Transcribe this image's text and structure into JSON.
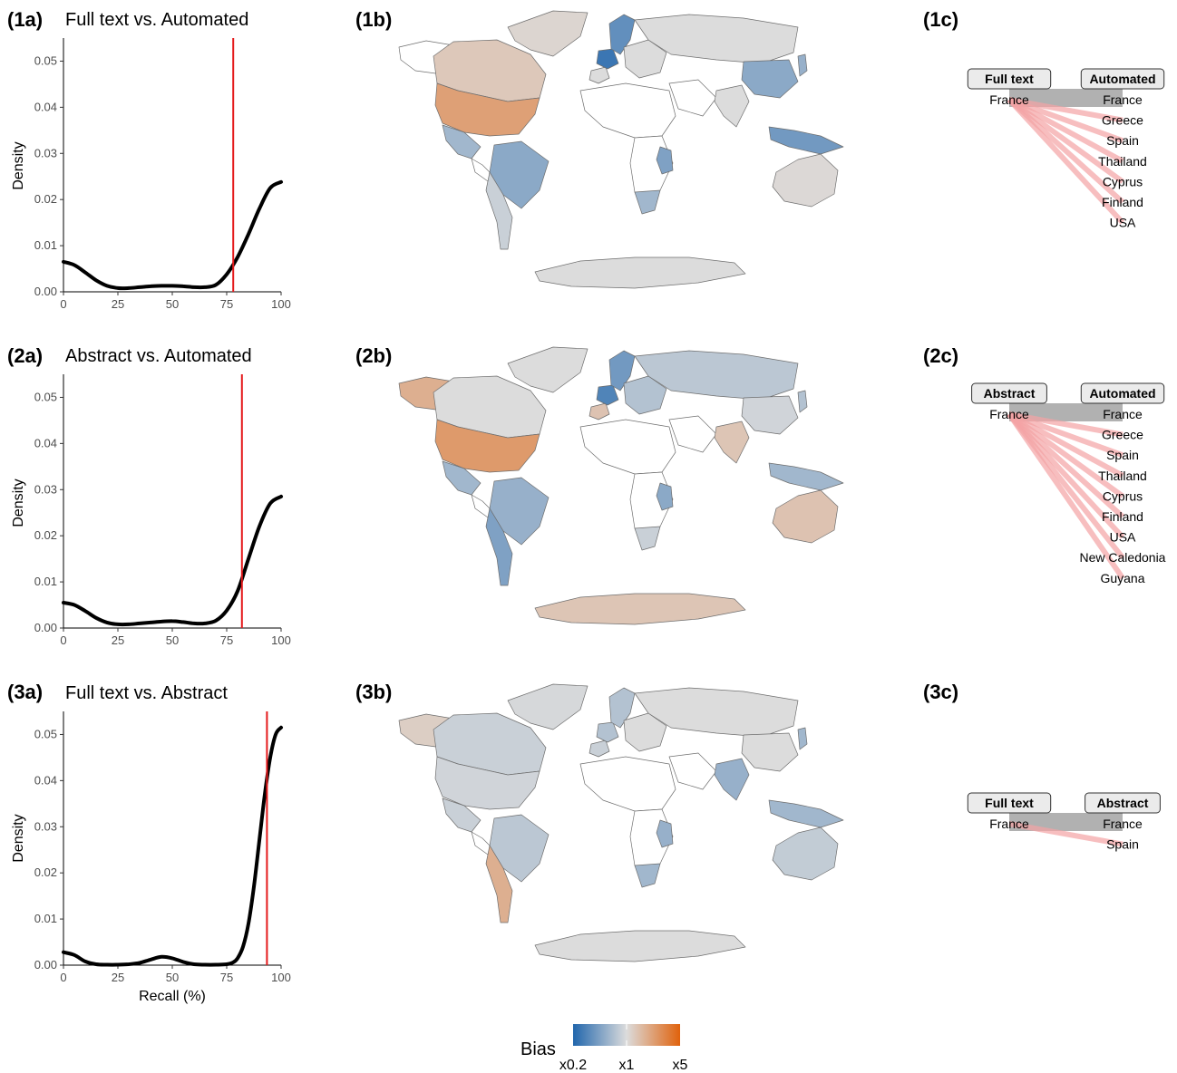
{
  "colors": {
    "density_line": "#000000",
    "recall_marker": "#e41a1c",
    "bias_low": "#2166ac",
    "bias_mid": "#dcdcdc",
    "bias_high": "#e0620c",
    "link": "#f4a3a5",
    "self_link": "#a9a9a9",
    "land_default": "#ffffff",
    "border": "#6e6e6e"
  },
  "chart_data": [
    {
      "id": "1a",
      "type": "line",
      "panel_label": "(1a)",
      "title": "Full text vs. Automated",
      "xlabel": "",
      "ylabel": "Density",
      "xlim": [
        0,
        100
      ],
      "ylim": [
        0,
        0.055
      ],
      "x_ticks": [
        "0",
        "25",
        "50",
        "75",
        "100"
      ],
      "y_ticks": [
        "0.00",
        "0.01",
        "0.02",
        "0.03",
        "0.04",
        "0.05"
      ],
      "x": [
        0,
        5,
        10,
        15,
        20,
        25,
        30,
        35,
        40,
        45,
        50,
        55,
        60,
        65,
        70,
        75,
        80,
        85,
        90,
        95,
        100
      ],
      "y": [
        0.0065,
        0.0058,
        0.0042,
        0.0025,
        0.0013,
        0.0008,
        0.0008,
        0.001,
        0.0012,
        0.0013,
        0.0013,
        0.0012,
        0.001,
        0.001,
        0.0015,
        0.0038,
        0.0075,
        0.0125,
        0.018,
        0.0225,
        0.0238
      ],
      "grid": false,
      "reference_x": 78
    },
    {
      "id": "2a",
      "type": "line",
      "panel_label": "(2a)",
      "title": "Abstract vs. Automated",
      "xlabel": "",
      "ylabel": "Density",
      "xlim": [
        0,
        100
      ],
      "ylim": [
        0,
        0.055
      ],
      "x_ticks": [
        "0",
        "25",
        "50",
        "75",
        "100"
      ],
      "y_ticks": [
        "0.00",
        "0.01",
        "0.02",
        "0.03",
        "0.04",
        "0.05"
      ],
      "x": [
        0,
        5,
        10,
        15,
        20,
        25,
        30,
        35,
        40,
        45,
        50,
        55,
        60,
        65,
        70,
        75,
        80,
        85,
        90,
        95,
        100
      ],
      "y": [
        0.0055,
        0.005,
        0.0037,
        0.0022,
        0.0012,
        0.0008,
        0.0008,
        0.001,
        0.0012,
        0.0014,
        0.0015,
        0.0013,
        0.001,
        0.001,
        0.0016,
        0.0038,
        0.008,
        0.015,
        0.022,
        0.027,
        0.0285
      ],
      "grid": false,
      "reference_x": 82
    },
    {
      "id": "3a",
      "type": "line",
      "panel_label": "(3a)",
      "title": "Full text vs. Abstract",
      "xlabel": "Recall (%)",
      "ylabel": "Density",
      "xlim": [
        0,
        100
      ],
      "ylim": [
        0,
        0.055
      ],
      "x_ticks": [
        "0",
        "25",
        "50",
        "75",
        "100"
      ],
      "y_ticks": [
        "0.00",
        "0.01",
        "0.02",
        "0.03",
        "0.04",
        "0.05"
      ],
      "x": [
        0,
        5,
        10,
        15,
        20,
        25,
        30,
        35,
        40,
        45,
        50,
        55,
        60,
        65,
        70,
        75,
        78,
        80,
        82.5,
        85,
        87.5,
        90,
        92.5,
        95,
        97.5,
        100
      ],
      "y": [
        0.0028,
        0.0022,
        0.0008,
        0.0002,
        0.0001,
        0.0001,
        0.0002,
        0.0005,
        0.0012,
        0.0018,
        0.0015,
        0.0007,
        0.0002,
        0.0001,
        0.0001,
        0.0002,
        0.0006,
        0.0015,
        0.004,
        0.009,
        0.017,
        0.027,
        0.037,
        0.045,
        0.05,
        0.0515
      ],
      "grid": false,
      "reference_x": 93.5
    }
  ],
  "maps": [
    {
      "panel_label": "(1b)",
      "regions": {
        "canada": 1.3,
        "usa": 2.2,
        "mexico": 0.6,
        "greenland": 1.1,
        "brazil": 0.5,
        "andes": 0.85,
        "scandinavia": 0.35,
        "france": 0.25,
        "iberia": 1.0,
        "europe_east": 1.0,
        "russia": 1.0,
        "south_asia": 1.0,
        "china_east": 0.5,
        "se_asia": 0.4,
        "east_africa": 0.45,
        "southern_africa": 0.6,
        "australia": 1.05,
        "antarctica": 1.0,
        "japan": 0.55
      }
    },
    {
      "panel_label": "(2b)",
      "regions": {
        "canada": 1.0,
        "usa": 2.4,
        "alaska": 1.8,
        "mexico": 0.6,
        "greenland": 1.0,
        "brazil": 0.55,
        "andes": 0.45,
        "scandinavia": 0.4,
        "france": 0.3,
        "iberia": 1.4,
        "europe_east": 0.7,
        "russia": 0.75,
        "south_asia": 1.35,
        "china_east": 0.9,
        "se_asia": 0.6,
        "east_africa": 0.5,
        "southern_africa": 0.85,
        "australia": 1.4,
        "antarctica": 1.35,
        "japan": 0.7
      }
    },
    {
      "panel_label": "(3b)",
      "regions": {
        "canada": 0.85,
        "usa": 0.9,
        "alaska": 1.2,
        "mexico": 0.85,
        "greenland": 0.95,
        "brazil": 0.75,
        "andes": 1.8,
        "scandinavia": 0.7,
        "france": 0.7,
        "iberia": 0.85,
        "europe_east": 1.0,
        "russia": 1.0,
        "south_asia": 0.55,
        "china_east": 1.0,
        "se_asia": 0.6,
        "east_africa": 0.55,
        "southern_africa": 0.6,
        "australia": 0.8,
        "antarctica": 1.0,
        "japan": 0.6
      }
    }
  ],
  "alluvials": [
    {
      "panel_label": "(1c)",
      "left_label": "Full text",
      "right_label": "Automated",
      "source": "France",
      "targets": [
        "France",
        "Greece",
        "Spain",
        "Thailand",
        "Cyprus",
        "Finland",
        "USA"
      ]
    },
    {
      "panel_label": "(2c)",
      "left_label": "Abstract",
      "right_label": "Automated",
      "source": "France",
      "targets": [
        "France",
        "Greece",
        "Spain",
        "Thailand",
        "Cyprus",
        "Finland",
        "USA",
        "New Caledonia",
        "Guyana"
      ]
    },
    {
      "panel_label": "(3c)",
      "left_label": "Full text",
      "right_label": "Abstract",
      "source": "France",
      "targets": [
        "France",
        "Spain"
      ]
    }
  ],
  "legend": {
    "title": "Bias",
    "ticks": [
      "x0.2",
      "x1",
      "x5"
    ]
  }
}
